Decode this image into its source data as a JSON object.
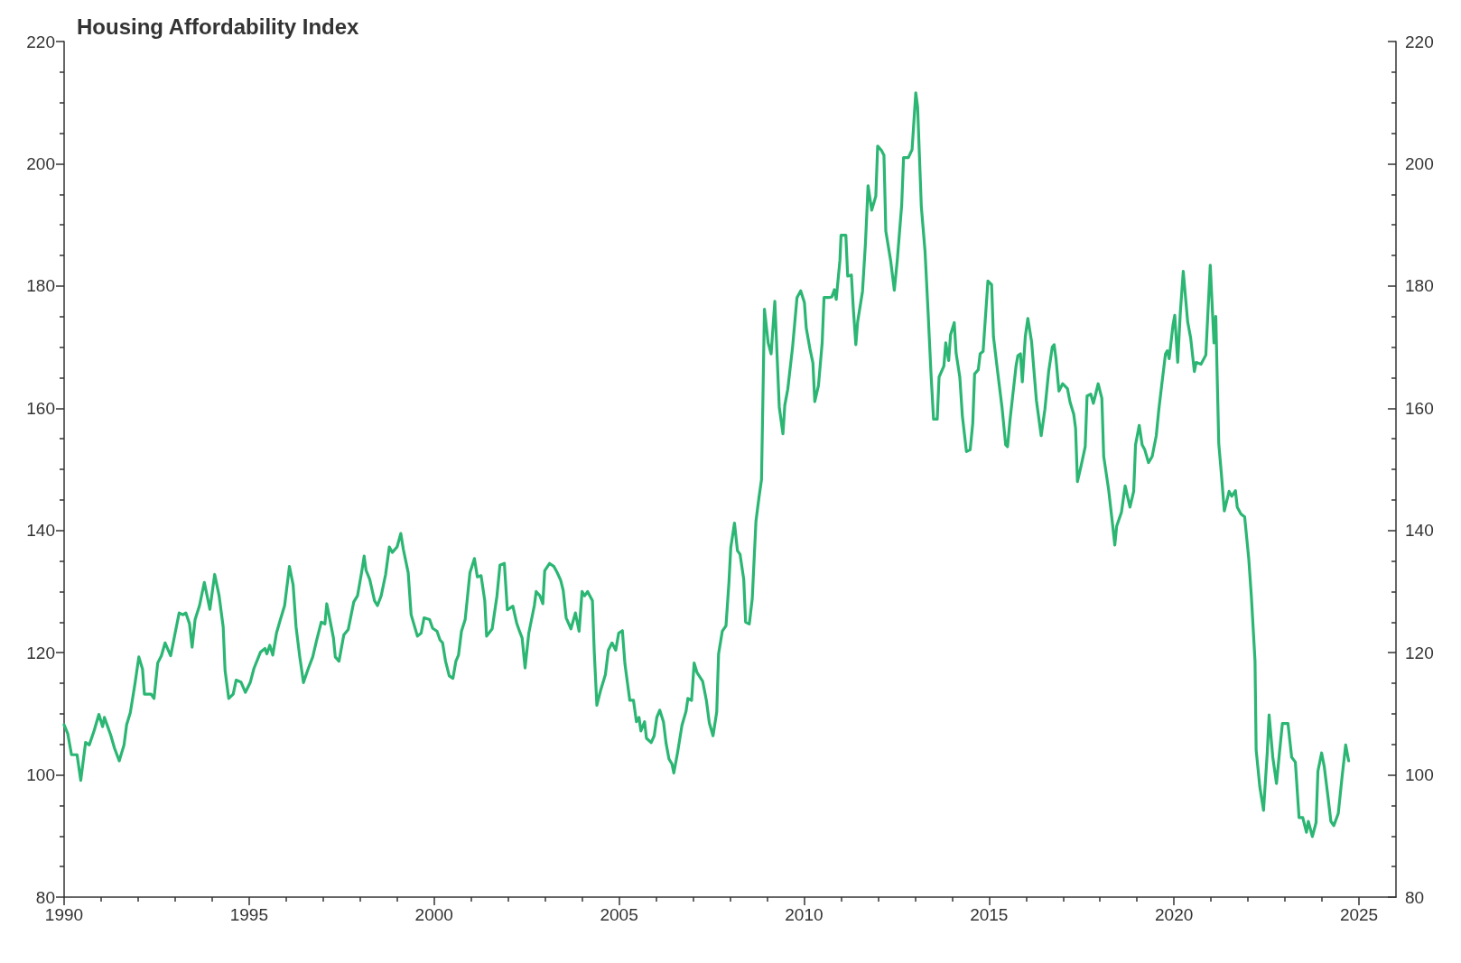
{
  "chart_data": {
    "type": "line",
    "title": "Housing Affordability Index",
    "color": "#2bb673",
    "line_style": "solid",
    "x": [
      1990.0,
      1990.1,
      1990.2,
      1990.35,
      1990.45,
      1990.58,
      1990.68,
      1990.81,
      1990.94,
      1991.04,
      1991.09,
      1991.26,
      1991.36,
      1991.49,
      1991.62,
      1991.69,
      1991.79,
      1991.92,
      1992.02,
      1992.12,
      1992.17,
      1992.35,
      1992.43,
      1992.53,
      1992.63,
      1992.73,
      1992.88,
      1993.01,
      1993.11,
      1993.21,
      1993.29,
      1993.39,
      1993.46,
      1993.54,
      1993.66,
      1993.79,
      1993.94,
      1994.07,
      1994.19,
      1994.3,
      1994.35,
      1994.45,
      1994.57,
      1994.65,
      1994.78,
      1994.9,
      1995.03,
      1995.13,
      1995.31,
      1995.43,
      1995.48,
      1995.56,
      1995.64,
      1995.74,
      1995.84,
      1995.96,
      1996.09,
      1996.19,
      1996.27,
      1996.37,
      1996.47,
      1996.6,
      1996.72,
      1996.82,
      1996.95,
      1997.05,
      1997.1,
      1997.28,
      1997.33,
      1997.43,
      1997.56,
      1997.68,
      1997.83,
      1997.93,
      1998.04,
      1998.11,
      1998.16,
      1998.26,
      1998.39,
      1998.47,
      1998.57,
      1998.69,
      1998.79,
      1998.87,
      1999.0,
      1999.1,
      1999.17,
      1999.3,
      1999.38,
      1999.55,
      1999.65,
      1999.73,
      1999.88,
      1999.96,
      2000.08,
      2000.16,
      2000.23,
      2000.31,
      2000.41,
      2000.51,
      2000.59,
      2000.66,
      2000.74,
      2000.84,
      2000.97,
      2001.09,
      2001.17,
      2001.27,
      2001.37,
      2001.42,
      2001.57,
      2001.7,
      2001.78,
      2001.9,
      2001.98,
      2002.13,
      2002.23,
      2002.31,
      2002.38,
      2002.46,
      2002.56,
      2002.71,
      2002.76,
      2002.86,
      2002.94,
      2002.99,
      2003.12,
      2003.24,
      2003.32,
      2003.42,
      2003.49,
      2003.57,
      2003.7,
      2003.82,
      2003.92,
      2004.0,
      2004.07,
      2004.15,
      2004.28,
      2004.33,
      2004.4,
      2004.5,
      2004.63,
      2004.71,
      2004.81,
      2004.91,
      2004.99,
      2005.09,
      2005.16,
      2005.29,
      2005.39,
      2005.47,
      2005.54,
      2005.59,
      2005.69,
      2005.74,
      2005.87,
      2005.95,
      2006.02,
      2006.1,
      2006.2,
      2006.27,
      2006.35,
      2006.43,
      2006.48,
      2006.58,
      2006.7,
      2006.81,
      2006.86,
      2006.96,
      2007.03,
      2007.11,
      2007.26,
      2007.36,
      2007.44,
      2007.54,
      2007.64,
      2007.69,
      2007.79,
      2007.89,
      2007.97,
      2008.02,
      2008.12,
      2008.2,
      2008.27,
      2008.37,
      2008.42,
      2008.52,
      2008.6,
      2008.7,
      2008.78,
      2008.85,
      2008.93,
      2009.03,
      2009.11,
      2009.21,
      2009.28,
      2009.33,
      2009.43,
      2009.48,
      2009.56,
      2009.69,
      2009.81,
      2009.91,
      2010.01,
      2010.06,
      2010.16,
      2010.24,
      2010.29,
      2010.39,
      2010.49,
      2010.54,
      2010.67,
      2010.75,
      2010.82,
      2010.87,
      2010.97,
      2011.0,
      2011.13,
      2011.18,
      2011.28,
      2011.33,
      2011.4,
      2011.45,
      2011.58,
      2011.66,
      2011.73,
      2011.83,
      2011.94,
      2011.99,
      2012.09,
      2012.16,
      2012.21,
      2012.34,
      2012.44,
      2012.52,
      2012.64,
      2012.69,
      2012.82,
      2012.92,
      2013.02,
      2013.07,
      2013.17,
      2013.27,
      2013.35,
      2013.43,
      2013.5,
      2013.6,
      2013.65,
      2013.78,
      2013.83,
      2013.91,
      2013.96,
      2014.06,
      2014.11,
      2014.21,
      2014.28,
      2014.39,
      2014.49,
      2014.56,
      2014.61,
      2014.71,
      2014.76,
      2014.84,
      2014.97,
      2015.07,
      2015.12,
      2015.22,
      2015.35,
      2015.45,
      2015.5,
      2015.57,
      2015.73,
      2015.78,
      2015.85,
      2015.9,
      2015.98,
      2016.05,
      2016.15,
      2016.28,
      2016.41,
      2016.51,
      2016.61,
      2016.71,
      2016.76,
      2016.81,
      2016.89,
      2016.99,
      2017.12,
      2017.19,
      2017.29,
      2017.34,
      2017.39,
      2017.49,
      2017.6,
      2017.65,
      2017.75,
      2017.82,
      2017.87,
      2017.95,
      2018.05,
      2018.1,
      2018.23,
      2018.33,
      2018.4,
      2018.45,
      2018.58,
      2018.68,
      2018.81,
      2018.91,
      2018.96,
      2019.06,
      2019.14,
      2019.21,
      2019.31,
      2019.41,
      2019.52,
      2019.59,
      2019.67,
      2019.77,
      2019.82,
      2019.87,
      2019.97,
      2020.02,
      2020.1,
      2020.17,
      2020.25,
      2020.37,
      2020.45,
      2020.55,
      2020.6,
      2020.73,
      2020.86,
      2020.98,
      2021.08,
      2021.13,
      2021.21,
      2021.28,
      2021.36,
      2021.49,
      2021.56,
      2021.66,
      2021.71,
      2021.81,
      2021.91,
      2022.02,
      2022.09,
      2022.19,
      2022.22,
      2022.32,
      2022.42,
      2022.52,
      2022.57,
      2022.67,
      2022.77,
      2022.85,
      2022.93,
      2023.08,
      2023.18,
      2023.28,
      2023.38,
      2023.48,
      2023.58,
      2023.63,
      2023.74,
      2023.84,
      2023.89,
      2023.99,
      2024.06,
      2024.16,
      2024.24,
      2024.32,
      2024.44,
      2024.54,
      2024.64,
      2024.72
    ],
    "values": [
      108.2,
      106.7,
      103.3,
      103.3,
      99.1,
      105.3,
      104.9,
      107.2,
      109.9,
      107.9,
      109.4,
      106.5,
      104.4,
      102.3,
      104.9,
      108.2,
      110.2,
      115.1,
      119.3,
      117.3,
      113.2,
      113.2,
      112.5,
      118.3,
      119.5,
      121.6,
      119.5,
      123.5,
      126.5,
      126.2,
      126.5,
      124.7,
      120.9,
      125.4,
      127.7,
      131.5,
      127.1,
      132.8,
      129.3,
      124.2,
      117.1,
      112.5,
      113.2,
      115.5,
      115.2,
      113.5,
      115.1,
      117.4,
      120.1,
      120.7,
      119.8,
      121.2,
      119.6,
      123.2,
      125.3,
      127.7,
      134.1,
      131.1,
      124.2,
      119.3,
      115.1,
      117.4,
      119.3,
      121.9,
      125.0,
      124.7,
      128.0,
      122.4,
      119.3,
      118.6,
      122.9,
      123.8,
      128.3,
      129.3,
      133.1,
      135.8,
      133.5,
      132.0,
      128.5,
      127.7,
      129.3,
      132.8,
      137.3,
      136.4,
      137.3,
      139.5,
      136.9,
      133.1,
      126.2,
      122.7,
      123.2,
      125.7,
      125.4,
      124.0,
      123.5,
      122.1,
      121.6,
      118.6,
      116.2,
      115.8,
      118.6,
      119.6,
      123.5,
      125.4,
      133.1,
      135.4,
      132.4,
      132.6,
      128.5,
      122.7,
      123.9,
      129.3,
      134.3,
      134.6,
      127.0,
      127.6,
      124.9,
      123.5,
      122.4,
      117.5,
      123.2,
      127.7,
      130.0,
      129.3,
      128.0,
      133.4,
      134.6,
      134.1,
      133.2,
      131.9,
      130.2,
      125.7,
      123.9,
      126.5,
      123.5,
      130.0,
      129.3,
      130.0,
      128.5,
      120.1,
      111.4,
      113.8,
      116.4,
      120.4,
      121.6,
      120.4,
      123.2,
      123.6,
      118.1,
      112.2,
      112.2,
      108.7,
      109.4,
      107.2,
      108.7,
      106.0,
      105.3,
      106.4,
      109.4,
      110.6,
      108.7,
      105.2,
      102.6,
      101.8,
      100.3,
      103.6,
      108.1,
      110.4,
      112.5,
      112.2,
      118.3,
      116.7,
      115.3,
      112.2,
      108.5,
      106.4,
      110.3,
      119.8,
      123.5,
      124.4,
      131.5,
      137.2,
      141.2,
      136.7,
      136.1,
      132.0,
      125.0,
      124.7,
      128.8,
      141.5,
      145.3,
      148.3,
      176.2,
      170.7,
      168.9,
      177.5,
      167.4,
      160.2,
      155.8,
      160.5,
      163.1,
      170.0,
      178.1,
      179.2,
      177.3,
      173.1,
      169.7,
      167.4,
      161.1,
      163.7,
      170.7,
      178.1,
      178.1,
      178.2,
      179.4,
      177.8,
      184.2,
      188.3,
      188.3,
      181.6,
      181.8,
      176.5,
      170.4,
      174.2,
      179.1,
      187.0,
      196.4,
      192.4,
      194.7,
      202.9,
      202.2,
      201.4,
      189.0,
      184.2,
      179.3,
      184.2,
      193.3,
      201.0,
      201.0,
      202.3,
      211.6,
      209.3,
      193.0,
      185.7,
      176.1,
      165.9,
      158.2,
      158.2,
      165.1,
      166.9,
      170.7,
      167.8,
      172.0,
      174.0,
      169.0,
      165.1,
      158.7,
      152.9,
      153.2,
      157.5,
      165.6,
      166.3,
      168.9,
      169.3,
      180.8,
      180.2,
      171.7,
      166.6,
      160.2,
      154.0,
      153.7,
      158.2,
      166.9,
      168.6,
      168.9,
      164.3,
      171.7,
      174.7,
      170.9,
      161.3,
      155.5,
      159.8,
      165.9,
      170.0,
      170.4,
      168.1,
      162.8,
      164.0,
      163.2,
      161.0,
      159.0,
      156.7,
      148.0,
      150.6,
      153.7,
      162.0,
      162.3,
      160.8,
      162.0,
      164.0,
      161.6,
      152.1,
      146.8,
      141.5,
      137.6,
      140.7,
      143.0,
      147.3,
      143.8,
      146.4,
      154.0,
      157.2,
      154.0,
      153.2,
      151.1,
      152.1,
      155.5,
      159.8,
      163.9,
      168.9,
      169.4,
      168.1,
      173.5,
      175.2,
      167.5,
      175.6,
      182.4,
      174.1,
      171.5,
      166.0,
      167.5,
      167.2,
      168.7,
      183.4,
      170.7,
      175.0,
      154.2,
      149.3,
      143.2,
      146.4,
      145.6,
      146.5,
      143.8,
      142.7,
      142.2,
      135.4,
      129.3,
      118.6,
      104.1,
      98.0,
      94.2,
      103.6,
      109.8,
      102.9,
      98.6,
      103.6,
      108.4,
      108.4,
      102.9,
      102.1,
      93.0,
      93.0,
      90.6,
      92.4,
      89.9,
      92.2,
      100.6,
      103.6,
      101.4,
      96.5,
      92.4,
      91.7,
      93.7,
      99.5,
      104.9,
      102.3
    ],
    "xlim": [
      1990,
      2026
    ],
    "xticks": [
      1990,
      {
        "value": 1991,
        "label": null
      },
      {
        "value": 1992,
        "label": null
      },
      {
        "value": 1993,
        "label": null
      },
      {
        "value": 1994,
        "label": null
      },
      1995,
      {
        "value": 1996,
        "label": null
      },
      {
        "value": 1997,
        "label": null
      },
      {
        "value": 1998,
        "label": null
      },
      {
        "value": 1999,
        "label": null
      },
      2000,
      {
        "value": 2001,
        "label": null
      },
      {
        "value": 2002,
        "label": null
      },
      {
        "value": 2003,
        "label": null
      },
      {
        "value": 2004,
        "label": null
      },
      2005,
      {
        "value": 2006,
        "label": null
      },
      {
        "value": 2007,
        "label": null
      },
      {
        "value": 2008,
        "label": null
      },
      {
        "value": 2009,
        "label": null
      },
      2010,
      {
        "value": 2011,
        "label": null
      },
      {
        "value": 2012,
        "label": null
      },
      {
        "value": 2013,
        "label": null
      },
      {
        "value": 2014,
        "label": null
      },
      2015,
      {
        "value": 2016,
        "label": null
      },
      {
        "value": 2017,
        "label": null
      },
      {
        "value": 2018,
        "label": null
      },
      {
        "value": 2019,
        "label": null
      },
      2020,
      {
        "value": 2021,
        "label": null
      },
      {
        "value": 2022,
        "label": null
      },
      {
        "value": 2023,
        "label": null
      },
      {
        "value": 2024,
        "label": null
      },
      2025
    ],
    "ylim": [
      80,
      220
    ],
    "yticks": [
      80,
      {
        "value": 85,
        "label": null
      },
      {
        "value": 90,
        "label": null
      },
      {
        "value": 95,
        "label": null
      },
      100,
      {
        "value": 105,
        "label": null
      },
      {
        "value": 110,
        "label": null
      },
      {
        "value": 115,
        "label": null
      },
      120,
      {
        "value": 125,
        "label": null
      },
      {
        "value": 130,
        "label": null
      },
      {
        "value": 135,
        "label": null
      },
      140,
      {
        "value": 145,
        "label": null
      },
      {
        "value": 150,
        "label": null
      },
      {
        "value": 155,
        "label": null
      },
      160,
      {
        "value": 165,
        "label": null
      },
      {
        "value": 170,
        "label": null
      },
      {
        "value": 175,
        "label": null
      },
      180,
      {
        "value": 185,
        "label": null
      },
      {
        "value": 190,
        "label": null
      },
      {
        "value": 195,
        "label": null
      },
      200,
      {
        "value": 205,
        "label": null
      },
      {
        "value": 210,
        "label": null
      },
      {
        "value": 215,
        "label": null
      },
      220
    ],
    "y2lim": [
      80,
      220
    ],
    "y2ticks": [
      80,
      {
        "value": 85,
        "label": null
      },
      {
        "value": 90,
        "label": null
      },
      {
        "value": 95,
        "label": null
      },
      100,
      {
        "value": 105,
        "label": null
      },
      {
        "value": 110,
        "label": null
      },
      {
        "value": 115,
        "label": null
      },
      120,
      {
        "value": 125,
        "label": null
      },
      {
        "value": 130,
        "label": null
      },
      {
        "value": 135,
        "label": null
      },
      140,
      {
        "value": 145,
        "label": null
      },
      {
        "value": 150,
        "label": null
      },
      {
        "value": 155,
        "label": null
      },
      160,
      {
        "value": 165,
        "label": null
      },
      {
        "value": 170,
        "label": null
      },
      {
        "value": 175,
        "label": null
      },
      180,
      {
        "value": 185,
        "label": null
      },
      {
        "value": 190,
        "label": null
      },
      {
        "value": 195,
        "label": null
      },
      200,
      {
        "value": 205,
        "label": null
      },
      {
        "value": 210,
        "label": null
      },
      {
        "value": 215,
        "label": null
      },
      220
    ]
  }
}
